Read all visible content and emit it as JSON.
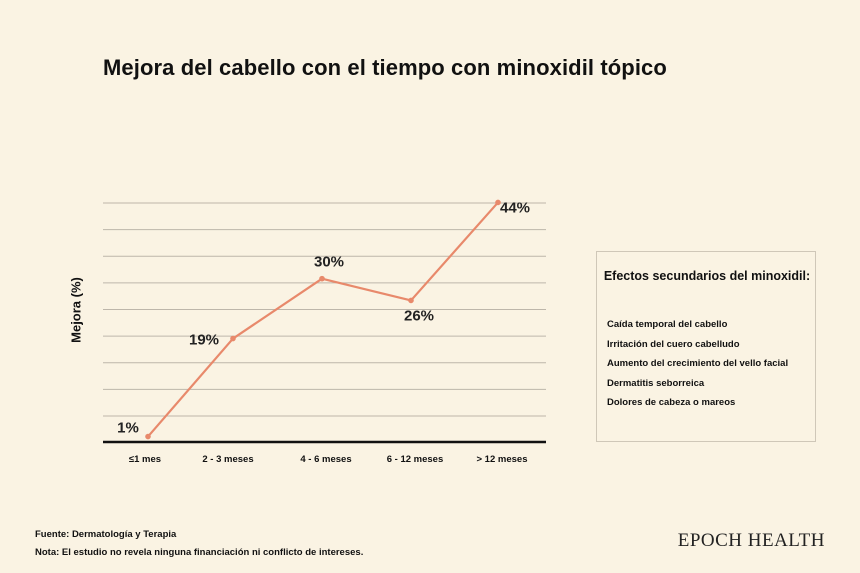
{
  "title": "Mejora del cabello con el tiempo con minoxidil tópico",
  "chart_data": {
    "type": "line",
    "title": "Mejora del cabello con el tiempo con minoxidil tópico",
    "xlabel": "",
    "ylabel": "Mejora (%)",
    "categories": [
      "≤1 mes",
      "2 - 3 meses",
      "4 - 6 meses",
      "6 - 12 meses",
      "> 12 meses"
    ],
    "values": [
      1,
      19,
      30,
      26,
      44
    ],
    "data_labels": [
      "1%",
      "19%",
      "30%",
      "26%",
      "44%"
    ],
    "ylim": [
      0,
      45
    ],
    "grid": true,
    "line_color": "#e8896b"
  },
  "side_effects": {
    "title": "Efectos secundarios del minoxidil:",
    "items": [
      "Caída temporal del cabello",
      "Irritación del cuero cabelludo",
      "Aumento del crecimiento del vello facial",
      "Dermatitis seborreica",
      "Dolores de cabeza o mareos"
    ]
  },
  "footer": {
    "source": "Fuente: Dermatología y Terapia",
    "note": "Nota: El estudio no revela ninguna financiación ni conflicto de intereses."
  },
  "brand": "EPOCH HEALTH"
}
